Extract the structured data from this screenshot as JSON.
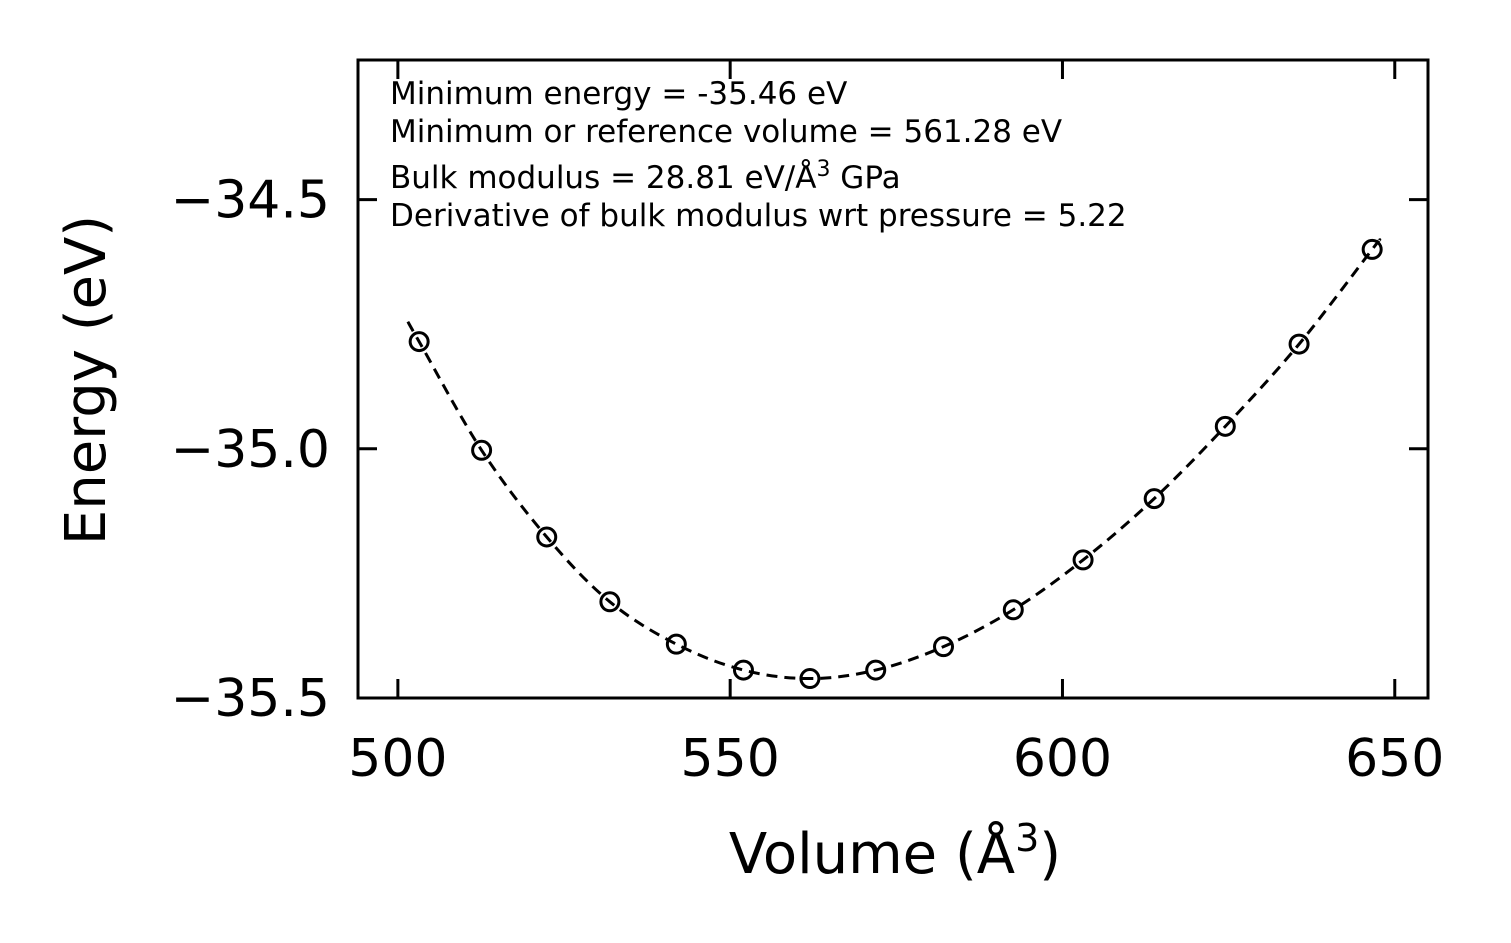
{
  "chart_data": {
    "type": "scatter",
    "title": "",
    "xlabel_main": "Volume (Å",
    "xlabel_sup": "3",
    "xlabel_end": ")",
    "ylabel": "Energy (eV)",
    "xlim": [
      494,
      655
    ],
    "ylim": [
      -35.5,
      -34.22
    ],
    "xticks": [
      500,
      550,
      600,
      650
    ],
    "xtick_labels": [
      "500",
      "550",
      "600",
      "650"
    ],
    "yticks": [
      -35.5,
      -35.0,
      -34.5
    ],
    "ytick_labels": [
      "−35.5",
      "−35.0",
      "−34.5"
    ],
    "grid": false,
    "series": [
      {
        "name": "data",
        "style": "open-circle",
        "x": [
          503.2,
          512.6,
          522.4,
          531.9,
          541.9,
          552.0,
          562.0,
          571.9,
          582.1,
          592.6,
          603.1,
          613.8,
          624.5,
          635.6,
          646.6
        ],
        "y": [
          -34.785,
          -35.003,
          -35.177,
          -35.307,
          -35.392,
          -35.444,
          -35.461,
          -35.444,
          -35.397,
          -35.323,
          -35.223,
          -35.1,
          -34.955,
          -34.79,
          -34.6
        ]
      },
      {
        "name": "fit",
        "style": "dashed-line",
        "x": [
          501.5,
          503.2,
          512.6,
          522.4,
          531.9,
          541.9,
          552.0,
          562.0,
          571.9,
          582.1,
          592.6,
          603.1,
          613.8,
          624.5,
          635.6,
          646.6,
          647.5
        ],
        "y": [
          -34.745,
          -34.785,
          -35.003,
          -35.177,
          -35.307,
          -35.392,
          -35.444,
          -35.461,
          -35.444,
          -35.397,
          -35.323,
          -35.223,
          -35.1,
          -34.955,
          -34.79,
          -34.6,
          -34.585
        ]
      }
    ],
    "annotations": {
      "line1": "Minimum energy = -35.46 eV",
      "line2": "Minimum or reference volume = 561.28 eV",
      "line3_main": "Bulk modulus = 28.81 eV/Å",
      "line3_sup": "3",
      "line3_end": " GPa",
      "line4": "Derivative of bulk modulus wrt pressure = 5.22"
    }
  }
}
